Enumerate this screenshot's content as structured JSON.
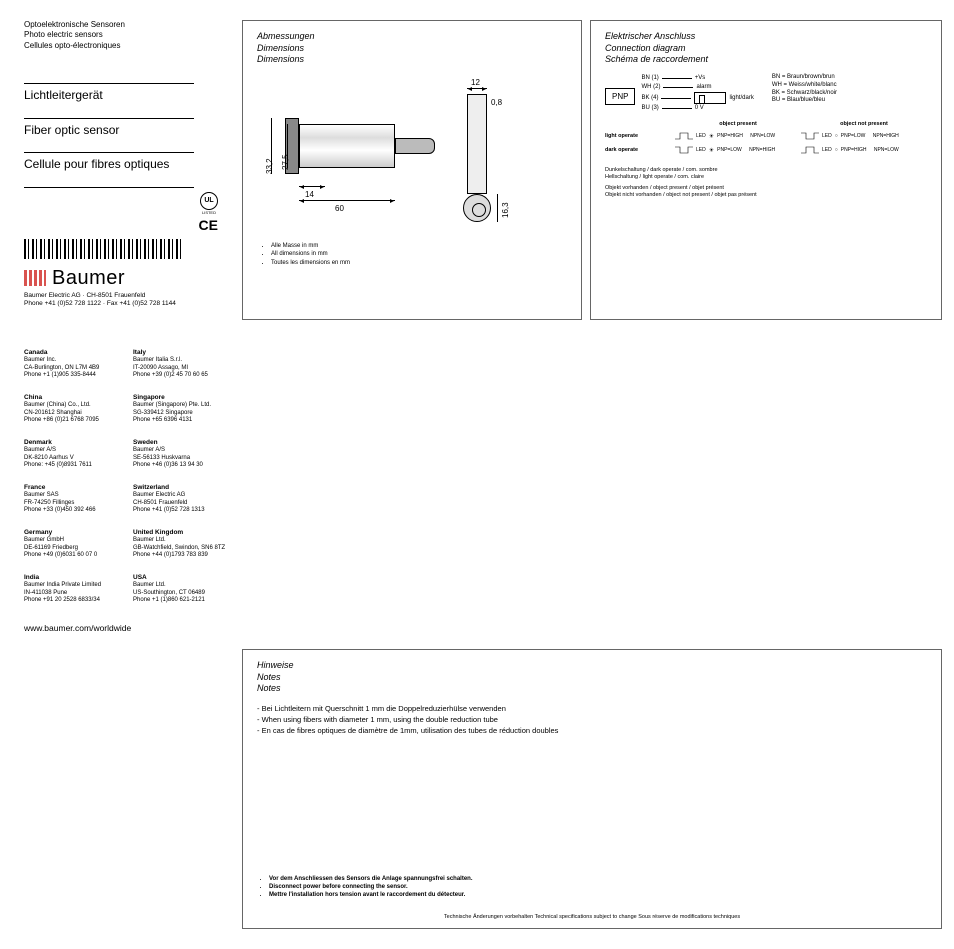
{
  "header": {
    "line1": "Optoelektronische Sensoren",
    "line2": "Photo electric sensors",
    "line3": "Cellules opto-électroniques"
  },
  "titles": {
    "de": "Lichtleitergerät",
    "en": "Fiber optic sensor",
    "fr": "Cellule pour fibres optiques"
  },
  "cert": {
    "ul": "UL",
    "ul_sub": "LISTED",
    "ce": "CE"
  },
  "logo": "Baumer",
  "addr": {
    "line1": "Baumer Electric AG · CH-8501 Frauenfeld",
    "line2": "Phone +41 (0)52 728 1122 · Fax +41 (0)52 728 1144"
  },
  "contacts": [
    {
      "country": "Canada",
      "name": "Baumer Inc.",
      "loc": "CA-Burlington, ON L7M 4B9",
      "phone": "Phone +1 (1)905 335-8444"
    },
    {
      "country": "Italy",
      "name": "Baumer Italia S.r.l.",
      "loc": "IT-20090 Assago, MI",
      "phone": "Phone +39 (0)2 45 70 60 65"
    },
    {
      "country": "China",
      "name": "Baumer (China) Co., Ltd.",
      "loc": "CN-201612 Shanghai",
      "phone": "Phone +86 (0)21 6768 7095"
    },
    {
      "country": "Singapore",
      "name": "Baumer (Singapore) Pte. Ltd.",
      "loc": "SG-339412 Singapore",
      "phone": "Phone +65 6396 4131"
    },
    {
      "country": "Denmark",
      "name": "Baumer A/S",
      "loc": "DK-8210 Aarhus V",
      "phone": "Phone: +45 (0)8931 7611"
    },
    {
      "country": "Sweden",
      "name": "Baumer A/S",
      "loc": "SE-56133 Huskvarna",
      "phone": "Phone +46 (0)36 13 94 30"
    },
    {
      "country": "France",
      "name": "Baumer SAS",
      "loc": "FR-74250 Fillinges",
      "phone": "Phone +33 (0)450 392 466"
    },
    {
      "country": "Switzerland",
      "name": "Baumer Electric AG",
      "loc": "CH-8501 Frauenfeld",
      "phone": "Phone +41 (0)52 728 1313"
    },
    {
      "country": "Germany",
      "name": "Baumer GmbH",
      "loc": "DE-61169 Friedberg",
      "phone": "Phone +49 (0)6031 60 07 0"
    },
    {
      "country": "United Kingdom",
      "name": "Baumer Ltd.",
      "loc": "GB-Watchfield, Swindon, SN6 8TZ",
      "phone": "Phone +44 (0)1793 783 839"
    },
    {
      "country": "India",
      "name": "Baumer India Private Limited",
      "loc": "IN-411038 Pune",
      "phone": "Phone +91 20 2528 6833/34"
    },
    {
      "country": "USA",
      "name": "Baumer Ltd.",
      "loc": "US-Southington, CT 06489",
      "phone": "Phone +1 (1)860 621-2121"
    }
  ],
  "url": "www.baumer.com/worldwide",
  "dims": {
    "title_de": "Abmessungen",
    "title_en": "Dimensions",
    "title_fr": "Dimensions",
    "d_33_2": "33,2",
    "d_27_5": "27,5",
    "d_14": "14",
    "d_60": "60",
    "d_12": "12",
    "d_0_8": "0,8",
    "d_16_3": "16,3",
    "bullet_de": "Alle Masse in mm",
    "bullet_en": "All dimensions in mm",
    "bullet_fr": "Toutes les dimensions en mm"
  },
  "conn": {
    "title_de": "Elektrischer Anschluss",
    "title_en": "Connection diagram",
    "title_fr": "Schéma de raccordement",
    "pnp": "PNP",
    "wires": {
      "bn": "BN (1)",
      "bn_lbl": "+Vs",
      "wh": "WH (2)",
      "wh_lbl": "alarm",
      "bk": "BK (4)",
      "bk_lbl": "light/dark",
      "bu": "BU (3)",
      "bu_lbl": "0 V"
    },
    "legend": {
      "bn": "BN = Braun/brown/brun",
      "wh": "WH = Weiss/white/blanc",
      "bk": "BK = Schwarz/black/noir",
      "bu": "BU = Blau/blue/bleu"
    },
    "hdr_present": "object present",
    "hdr_absent": "object not present",
    "light_op": "light operate",
    "dark_op": "dark operate",
    "led": "LED",
    "pnp_high": "PNP=HIGH",
    "pnp_low": "PNP=LOW",
    "npn_low": "NPN=LOW",
    "npn_high": "NPN=HIGH",
    "note1": "Dunkelschaltung / dark operate / com. sombre",
    "note2": "Hellschaltung / light operate / com. claire",
    "note3": "Objekt vorhanden / object present / objet présent",
    "note4": "Objekt nicht vorhanden / object not present / objet pas présent"
  },
  "notes": {
    "title_de": "Hinweise",
    "title_en": "Notes",
    "title_fr": "Notes",
    "n1": "- Bei Lichtleitern mit Querschnitt 1 mm die Doppelreduzierhülse verwenden",
    "n2": "- When using fibers with diameter 1 mm, using the double reduction tube",
    "n3": "- En cas de fibres optiques de diamètre de 1mm, utilisation des tubes de réduction doubles",
    "w1": "Vor dem Anschliessen des Sensors die Anlage spannungsfrei schalten.",
    "w2": "Disconnect power before connecting the sensor.",
    "w3": "Mettre l'installation hors tension avant le raccordement du détecteur.",
    "tech": "Technische Änderungen vorbehalten   Technical specifications subject to change   Sous réserve de modifications techniques"
  }
}
